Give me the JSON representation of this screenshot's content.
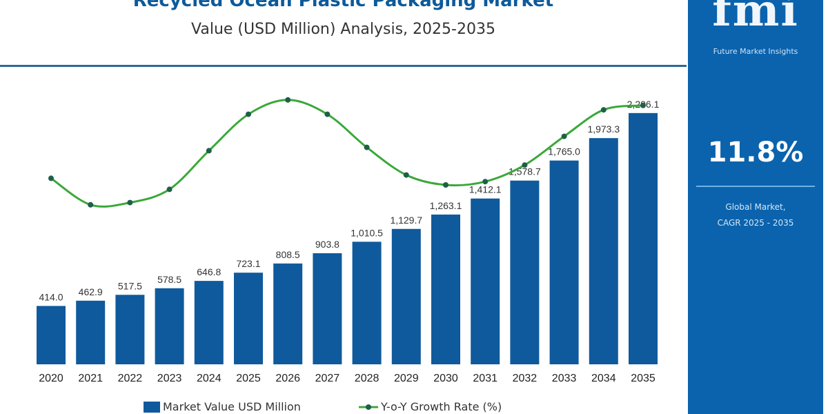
{
  "chart_data": {
    "type": "bar",
    "title": "Recycled Ocean Plastic Packaging Market",
    "subtitle": "Value (USD Million) Analysis, 2025-2035",
    "categories": [
      "2020",
      "2021",
      "2022",
      "2023",
      "2024",
      "2025",
      "2026",
      "2027",
      "2028",
      "2029",
      "2030",
      "2031",
      "2032",
      "2033",
      "2034",
      "2035"
    ],
    "series": [
      {
        "name": "Market Value USD Million",
        "type": "bar",
        "color": "#0f5a9c",
        "values": [
          414.0,
          462.9,
          517.5,
          578.5,
          646.8,
          723.1,
          808.5,
          903.8,
          1010.5,
          1129.7,
          1263.1,
          1412.1,
          1578.7,
          1765.0,
          1973.3,
          2206.1
        ],
        "labels": [
          "414.0",
          "462.9",
          "517.5",
          "578.5",
          "646.8",
          "723.1",
          "808.5",
          "903.8",
          "1,010.5",
          "1,129.7",
          "1,263.1",
          "1,412.1",
          "1,578.7",
          "1,765.0",
          "1,973.3",
          "2,206.1"
        ]
      },
      {
        "name": "Y-o-Y Growth Rate (%)",
        "type": "line",
        "color": "#3aa83a",
        "marker_color": "#1f5f4a",
        "relative_values": [
          26,
          2,
          4,
          16,
          51,
          84,
          97,
          84,
          54,
          29,
          20,
          23,
          38,
          64,
          88,
          92
        ]
      }
    ],
    "legend": "bottom",
    "grid": false
  },
  "side_panel": {
    "brand": "fmi",
    "brand_sub": "Future Market Insights",
    "cagr": "11.8%",
    "cagr_label_1": "Global Market,",
    "cagr_label_2": "CAGR 2025 - 2035",
    "bg_color": "#0b63ad"
  }
}
